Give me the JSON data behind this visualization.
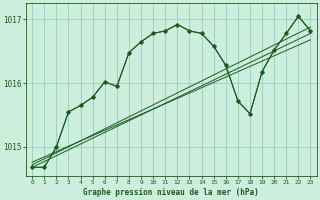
{
  "title": "Graphe pression niveau de la mer (hPa)",
  "bg_color": "#cceedd",
  "grid_color": "#99ccbb",
  "line_color": "#1a5c1a",
  "xlim": [
    -0.5,
    23.5
  ],
  "ylim": [
    1014.55,
    1017.25
  ],
  "yticks": [
    1015,
    1016,
    1017
  ],
  "xticks": [
    0,
    1,
    2,
    3,
    4,
    5,
    6,
    7,
    8,
    9,
    10,
    11,
    12,
    13,
    14,
    15,
    16,
    17,
    18,
    19,
    20,
    21,
    22,
    23
  ],
  "series1_x": [
    0,
    1,
    2,
    3,
    4,
    5,
    6,
    7,
    8,
    9,
    10,
    11,
    12,
    13,
    14,
    15,
    16,
    17,
    18,
    19,
    20,
    21,
    22,
    23
  ],
  "series1_y": [
    1014.68,
    1014.68,
    1015.0,
    1015.55,
    1015.65,
    1015.78,
    1016.02,
    1015.95,
    1016.48,
    1016.65,
    1016.78,
    1016.82,
    1016.92,
    1016.82,
    1016.78,
    1016.58,
    1016.28,
    1015.72,
    1015.52,
    1016.18,
    1016.52,
    1016.78,
    1017.05,
    1016.82
  ],
  "series2_x": [
    0,
    1,
    2,
    3,
    4,
    5,
    6,
    7,
    8,
    9,
    10,
    11,
    12,
    13,
    14,
    15,
    16,
    17,
    18,
    19,
    20,
    21,
    22,
    23
  ],
  "series2_y": [
    1014.68,
    1014.68,
    1015.0,
    1015.55,
    1015.65,
    1015.78,
    1016.02,
    1015.95,
    1016.48,
    1016.65,
    1016.78,
    1016.82,
    1016.92,
    1016.82,
    1016.78,
    1016.58,
    1016.28,
    1015.72,
    1015.52,
    1016.18,
    1016.52,
    1016.78,
    1017.05,
    1016.82
  ],
  "trend1_x": [
    0,
    23
  ],
  "trend1_y": [
    1014.68,
    1016.78
  ],
  "trend2_x": [
    0,
    23
  ],
  "trend2_y": [
    1014.72,
    1016.88
  ],
  "trend3_x": [
    0,
    23
  ],
  "trend3_y": [
    1014.76,
    1016.68
  ],
  "figsize": [
    3.2,
    2.0
  ],
  "dpi": 100
}
